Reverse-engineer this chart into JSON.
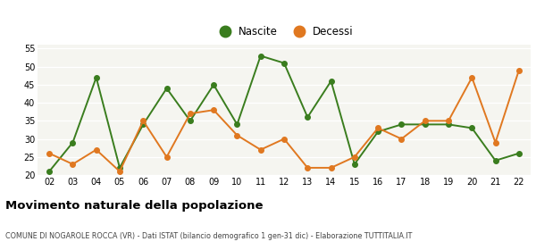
{
  "years": [
    "02",
    "03",
    "04",
    "05",
    "06",
    "07",
    "08",
    "09",
    "10",
    "11",
    "12",
    "13",
    "14",
    "15",
    "16",
    "17",
    "18",
    "19",
    "20",
    "21",
    "22"
  ],
  "nascite": [
    21,
    29,
    47,
    22,
    34,
    44,
    35,
    45,
    34,
    53,
    51,
    36,
    46,
    23,
    32,
    34,
    34,
    34,
    33,
    24,
    26
  ],
  "decessi": [
    26,
    23,
    27,
    21,
    35,
    25,
    37,
    38,
    31,
    27,
    30,
    22,
    22,
    25,
    33,
    30,
    35,
    35,
    47,
    29,
    49
  ],
  "nascite_color": "#3a7d1e",
  "decessi_color": "#e07820",
  "ylim_min": 20,
  "ylim_max": 56,
  "yticks": [
    20,
    25,
    30,
    35,
    40,
    45,
    50,
    55
  ],
  "title": "Movimento naturale della popolazione",
  "subtitle": "COMUNE DI NOGAROLE ROCCA (VR) - Dati ISTAT (bilancio demografico 1 gen-31 dic) - Elaborazione TUTTITALIA.IT",
  "legend_nascite": "Nascite",
  "legend_decessi": "Decessi",
  "bg_color": "#ffffff",
  "plot_bg_color": "#f5f5f0",
  "grid_color": "#ffffff",
  "marker_size": 4,
  "line_width": 1.4
}
